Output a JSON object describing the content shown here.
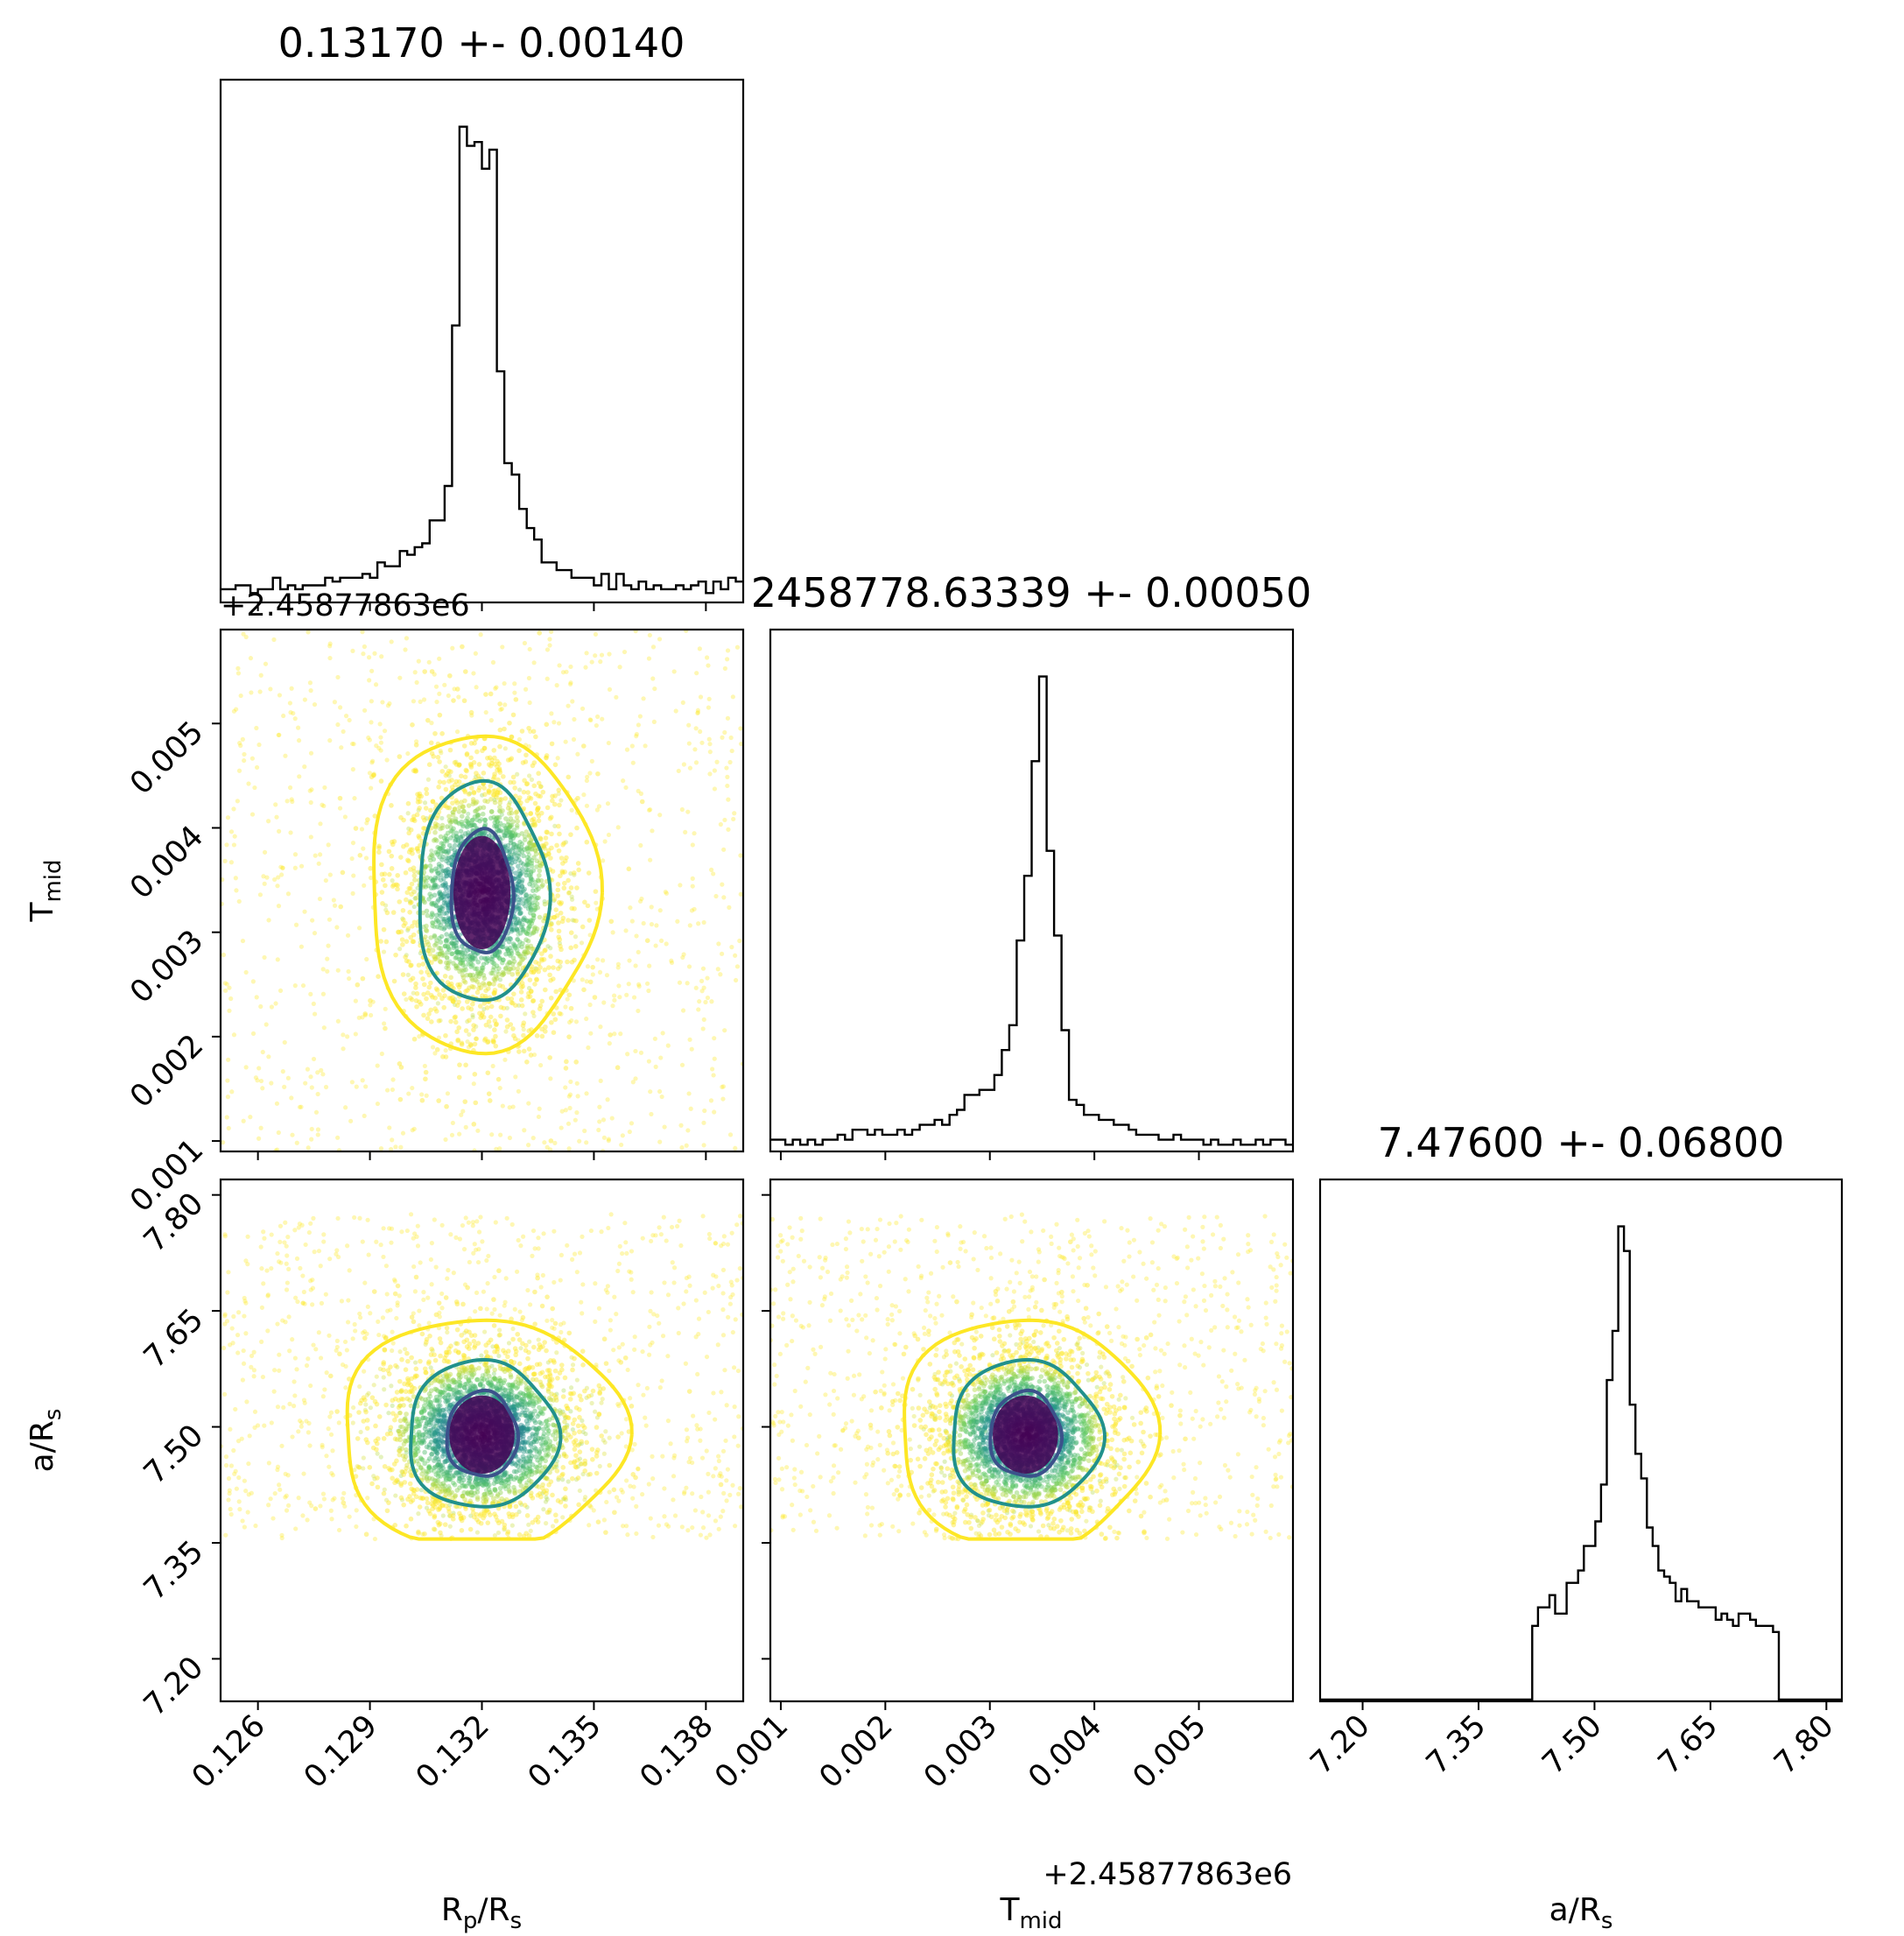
{
  "chart_data": {
    "type": "corner",
    "parameters": [
      "Rp/Rs",
      "Tmid",
      "a/Rs"
    ],
    "titles": [
      "0.13170 +- 0.00140",
      "2458778.63339 +- 0.00050",
      "7.47600 +- 0.06800"
    ],
    "axis_labels": {
      "rp": {
        "main": "R",
        "sub": "p",
        "rest": "/R",
        "sub2": "s"
      },
      "tmid": {
        "main": "T",
        "sub": "mid"
      },
      "ars": {
        "main": "a/R",
        "sub": "s"
      }
    },
    "offset_label": "+2.45877863e6",
    "ranges": {
      "rp": [
        0.125,
        0.139
      ],
      "tmid": [
        0.0009,
        0.0059
      ],
      "ars": [
        7.145,
        7.82
      ]
    },
    "ticks": {
      "rp": [
        "0.126",
        "0.129",
        "0.132",
        "0.135",
        "0.138"
      ],
      "rp_values": [
        0.126,
        0.129,
        0.132,
        0.135,
        0.138
      ],
      "tmid": [
        "0.001",
        "0.002",
        "0.003",
        "0.004",
        "0.005"
      ],
      "tmid_values": [
        0.001,
        0.002,
        0.003,
        0.004,
        0.005
      ],
      "ars": [
        "7.20",
        "7.35",
        "7.50",
        "7.65",
        "7.80"
      ],
      "ars_values": [
        7.2,
        7.35,
        7.5,
        7.65,
        7.8
      ]
    },
    "histograms": {
      "rp": [
        3,
        3,
        4,
        4,
        2,
        3,
        3,
        6,
        3,
        4,
        3,
        4,
        4,
        4,
        6,
        5,
        6,
        6,
        6,
        7,
        6,
        10,
        9,
        9,
        13,
        12,
        14,
        15,
        21,
        21,
        30,
        72,
        124,
        119,
        120,
        113,
        118,
        60,
        36,
        33,
        24,
        19,
        16,
        10,
        10,
        8,
        8,
        6,
        6,
        6,
        4,
        7,
        3,
        7,
        4,
        3,
        5,
        3,
        4,
        3,
        3,
        4,
        3,
        4,
        5,
        2,
        5,
        3,
        6,
        5
      ],
      "tmid": [
        2,
        2,
        1,
        2,
        1,
        2,
        1,
        2,
        2,
        3,
        2,
        4,
        4,
        3,
        4,
        3,
        3,
        4,
        3,
        4,
        5,
        5,
        6,
        5,
        7,
        8,
        11,
        11,
        12,
        12,
        15,
        20,
        25,
        42,
        55,
        78,
        95,
        60,
        43,
        24,
        10,
        9,
        7,
        7,
        6,
        6,
        5,
        5,
        4,
        3,
        3,
        3,
        2,
        2,
        3,
        2,
        2,
        2,
        1,
        2,
        1,
        1,
        2,
        1,
        1,
        2,
        1,
        2,
        2,
        1
      ],
      "ars": [
        0,
        0,
        0,
        0,
        0,
        0,
        0,
        0,
        0,
        0,
        0,
        0,
        0,
        0,
        0,
        0,
        0,
        0,
        0,
        0,
        0,
        0,
        0,
        0,
        0,
        0,
        0,
        0,
        0,
        0,
        0,
        0,
        0,
        0,
        0,
        0,
        0,
        12,
        15,
        15,
        17,
        14,
        14,
        19,
        19,
        21,
        25,
        25,
        29,
        35,
        52,
        60,
        77,
        73,
        48,
        40,
        36,
        28,
        25,
        21,
        20,
        19,
        16,
        18,
        16,
        16,
        15,
        15,
        15,
        13,
        14,
        13,
        12,
        14,
        14,
        13,
        12,
        12,
        12,
        11,
        0,
        0,
        0,
        0,
        0,
        0,
        0,
        0,
        0,
        0,
        0
      ]
    },
    "scatter_style": {
      "colormap": "viridis",
      "contour_colors": [
        "#fde725",
        "#21918c",
        "#3b528b"
      ],
      "core_color": "#440154"
    },
    "contours": {
      "tmid_vs_rp": {
        "center": [
          0.132,
          0.00338
        ],
        "radii": [
          [
            0.00083,
            0.00059
          ],
          [
            0.00174,
            0.00105
          ],
          [
            0.00305,
            0.00152
          ]
        ]
      },
      "ars_vs_rp": {
        "center": [
          0.132,
          7.49
        ],
        "radii": [
          [
            0.00095,
            0.055
          ],
          [
            0.002,
            0.095
          ],
          [
            0.0038,
            0.15
          ]
        ]
      },
      "ars_vs_tmid": {
        "center": [
          0.00334,
          7.49
        ],
        "radii": [
          [
            0.00034,
            0.055
          ],
          [
            0.00072,
            0.095
          ],
          [
            0.00122,
            0.15
          ]
        ]
      }
    },
    "grid": false,
    "legend": "none"
  }
}
